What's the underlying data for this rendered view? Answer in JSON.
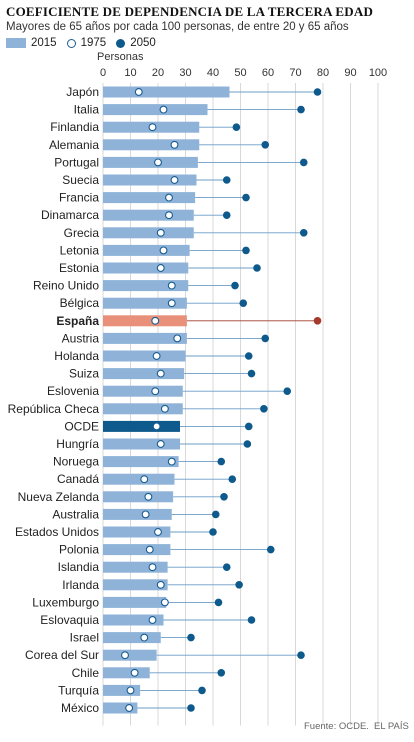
{
  "header": {
    "title": "COEFICIENTE DE DEPENDENCIA DE LA TERCERA EDAD",
    "subtitle": "Mayores de 65 años por cada 100 personas, de entre 20 y 65 años"
  },
  "legend": {
    "bar_label": "2015",
    "open_label": "1975",
    "filled_label": "2050"
  },
  "footer": {
    "source": "Fuente: OCDE.",
    "brand": "EL PAÍS"
  },
  "colors": {
    "bar": "#8fb3d8",
    "highlight_spain": "#e8907a",
    "highlight_oecd": "#0e5a8c",
    "dot": "#0e5a8c",
    "spain_dot": "#a33a2c",
    "grid": "#cfcfcf"
  },
  "chart_data": {
    "type": "bar",
    "orientation": "horizontal",
    "xlabel": "Personas",
    "xlim": [
      0,
      100
    ],
    "xticks": [
      "0",
      "10",
      "20",
      "30",
      "40",
      "50",
      "60",
      "70",
      "80",
      "90",
      "100"
    ],
    "grid": true,
    "highlight": {
      "España": "spain",
      "OCDE": "oecd"
    },
    "categories": [
      "Japón",
      "Italia",
      "Finlandia",
      "Alemania",
      "Portugal",
      "Suecia",
      "Francia",
      "Dinamarca",
      "Grecia",
      "Letonia",
      "Estonia",
      "Reino Unido",
      "Bélgica",
      "España",
      "Austria",
      "Holanda",
      "Suiza",
      "Eslovenia",
      "República Checa",
      "OCDE",
      "Hungría",
      "Noruega",
      "Canadá",
      "Nueva Zelanda",
      "Australia",
      "Estados Unidos",
      "Polonia",
      "Islandia",
      "Irlanda",
      "Luxemburgo",
      "Eslovaquia",
      "Israel",
      "Corea del Sur",
      "Chile",
      "Turquía",
      "México"
    ],
    "series": [
      {
        "name": "2015",
        "values": [
          46,
          38,
          35,
          35,
          34.5,
          34,
          33.5,
          33,
          33,
          31.5,
          31,
          31,
          30.5,
          30.5,
          30.5,
          30,
          29.5,
          29,
          29,
          28,
          28,
          27.5,
          26,
          25.5,
          25,
          24.5,
          24.5,
          23.5,
          23.5,
          23,
          22,
          21,
          19.5,
          17,
          13.5,
          12.5
        ]
      },
      {
        "name": "1975",
        "values": [
          13,
          22,
          18,
          26,
          20,
          26,
          24,
          24,
          21,
          22,
          21,
          25,
          25,
          19,
          27,
          19.5,
          21,
          19,
          22.5,
          19.5,
          21,
          25,
          15,
          16.5,
          15.5,
          20,
          17,
          18,
          21,
          22.5,
          18,
          15,
          8,
          11.5,
          10,
          9.5
        ]
      },
      {
        "name": "2050",
        "values": [
          78,
          72,
          48.5,
          59,
          73,
          45,
          52,
          45,
          73,
          52,
          56,
          48,
          51,
          78,
          59,
          53,
          54,
          67,
          58.5,
          53,
          52.5,
          43,
          47,
          44,
          41,
          40,
          61,
          45,
          49.5,
          42,
          54,
          32,
          72,
          43,
          36,
          32
        ]
      }
    ]
  }
}
